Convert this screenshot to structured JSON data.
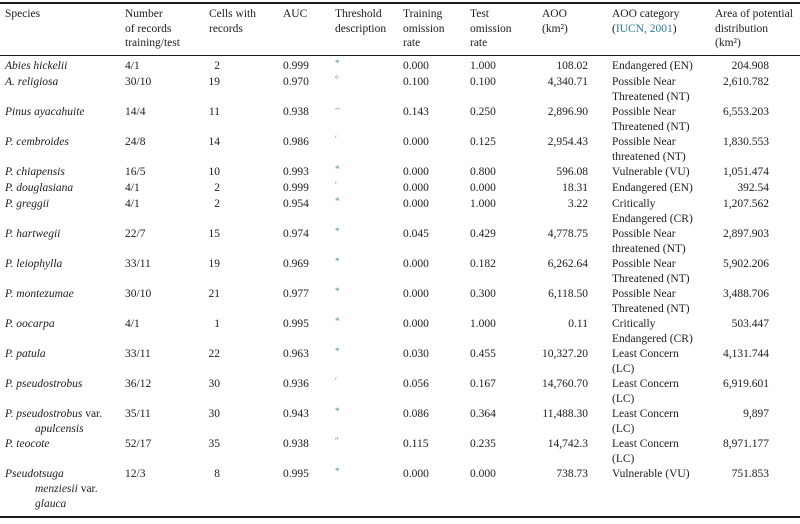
{
  "colors": {
    "text": "#1c1c1c",
    "rule": "#1a1a1a",
    "link_teal": "#2f7ba0",
    "footnote_mark_teal": "#4786a2",
    "background": "#ffffff"
  },
  "header": {
    "species": "Species",
    "records_lines": [
      "Number",
      "of records",
      "training/test"
    ],
    "cells_lines": [
      "Cells with",
      "records"
    ],
    "auc": "AUC",
    "threshold_lines": [
      "Threshold",
      "description"
    ],
    "training_lines": [
      "Training",
      "omission",
      "rate"
    ],
    "test_lines": [
      "Test",
      "omission",
      "rate"
    ],
    "aoo_lines": [
      "AOO",
      "(km²)"
    ],
    "category_line1": "AOO category",
    "category_open": "(",
    "category_link": "IUCN, 2001",
    "category_close": ")",
    "area_lines": [
      "Area of potential",
      "distribution",
      "(km²)"
    ]
  },
  "rows": [
    {
      "species": [
        [
          {
            "t": "Abies hickelii",
            "i": true
          }
        ]
      ],
      "records": "4/1",
      "cells": "2",
      "auc": "0.999",
      "threshold": "*",
      "training": "0.000",
      "test": "1.000",
      "aoo": "108.02",
      "category": [
        "Endangered (EN)"
      ],
      "area": "204.908"
    },
    {
      "species": [
        [
          {
            "t": "A. religiosa",
            "i": true
          }
        ]
      ],
      "records": "30/10",
      "cells": "19",
      "auc": "0.970",
      "threshold": "°",
      "training": "0.100",
      "test": "0.100",
      "aoo": "4,340.71",
      "category": [
        "Possible Near",
        "Threatened (NT)"
      ],
      "area": "2,610.782"
    },
    {
      "species": [
        [
          {
            "t": "Pinus ayacahuite",
            "i": true
          }
        ]
      ],
      "records": "14/4",
      "cells": "11",
      "auc": "0.938",
      "threshold": "~",
      "training": "0.143",
      "test": "0.250",
      "aoo": "2,896.90",
      "category": [
        "Possible Near",
        "Threatened (NT)"
      ],
      "area": "6,553.203"
    },
    {
      "species": [
        [
          {
            "t": "P. cembroides",
            "i": true
          }
        ]
      ],
      "records": "24/8",
      "cells": "14",
      "auc": "0.986",
      "threshold": "′",
      "training": "0.000",
      "test": "0.125",
      "aoo": "2,954.43",
      "category": [
        "Possible Near",
        "threatened (NT)"
      ],
      "area": "1,830.553"
    },
    {
      "species": [
        [
          {
            "t": "P. chiapensis",
            "i": true
          }
        ]
      ],
      "records": "16/5",
      "cells": "10",
      "auc": "0.993",
      "threshold": "*",
      "training": "0.000",
      "test": "0.800",
      "aoo": "596.08",
      "category": [
        "Vulnerable (VU)"
      ],
      "area": "1,051.474"
    },
    {
      "species": [
        [
          {
            "t": "P. douglasiana",
            "i": true
          }
        ]
      ],
      "records": "4/1",
      "cells": "2",
      "auc": "0.999",
      "threshold": "′",
      "training": "0.000",
      "test": "0.000",
      "aoo": "18.31",
      "category": [
        "Endangered (EN)"
      ],
      "area": "392.54"
    },
    {
      "species": [
        [
          {
            "t": "P. greggii",
            "i": true
          }
        ]
      ],
      "records": "4/1",
      "cells": "2",
      "auc": "0.954",
      "threshold": "*",
      "training": "0.000",
      "test": "1.000",
      "aoo": "3.22",
      "category": [
        "Critically",
        "Endangered (CR)"
      ],
      "area": "1,207.562"
    },
    {
      "species": [
        [
          {
            "t": "P. hartwegii",
            "i": true
          }
        ]
      ],
      "records": "22/7",
      "cells": "15",
      "auc": "0.974",
      "threshold": "*",
      "training": "0.045",
      "test": "0.429",
      "aoo": "4,778.75",
      "category": [
        "Possible Near",
        "threatened (NT)"
      ],
      "area": "2,897.903"
    },
    {
      "species": [
        [
          {
            "t": "P. leiophylla",
            "i": true
          }
        ]
      ],
      "records": "33/11",
      "cells": "19",
      "auc": "0.969",
      "threshold": "*",
      "training": "0.000",
      "test": "0.182",
      "aoo": "6,262.64",
      "category": [
        "Possible Near",
        "Threatened (NT)"
      ],
      "area": "5,902.206"
    },
    {
      "species": [
        [
          {
            "t": "P. montezumae",
            "i": true
          }
        ]
      ],
      "records": "30/10",
      "cells": "21",
      "auc": "0.977",
      "threshold": "*",
      "training": "0.000",
      "test": "0.300",
      "aoo": "6,118.50",
      "category": [
        "Possible Near",
        "Threatened (NT)"
      ],
      "area": "3,488.706"
    },
    {
      "species": [
        [
          {
            "t": "P. oocarpa",
            "i": true
          }
        ]
      ],
      "records": "4/1",
      "cells": "1",
      "auc": "0.995",
      "threshold": "*",
      "training": "0.000",
      "test": "1.000",
      "aoo": "0.11",
      "category": [
        "Critically",
        "Endangered (CR)"
      ],
      "area": "503.447"
    },
    {
      "species": [
        [
          {
            "t": "P. patula",
            "i": true
          }
        ]
      ],
      "records": "33/11",
      "cells": "22",
      "auc": "0.963",
      "threshold": "*",
      "training": "0.030",
      "test": "0.455",
      "aoo": "10,327.20",
      "category": [
        "Least Concern",
        "(LC)"
      ],
      "area": "4,131.744"
    },
    {
      "species": [
        [
          {
            "t": "P. pseudostrobus",
            "i": true
          }
        ]
      ],
      "records": "36/12",
      "cells": "30",
      "auc": "0.936",
      "threshold": "′",
      "training": "0.056",
      "test": "0.167",
      "aoo": "14,760.70",
      "category": [
        "Least Concern",
        "(LC)"
      ],
      "area": "6,919.601"
    },
    {
      "species": [
        [
          {
            "t": "P. pseudostrobus ",
            "i": true
          },
          {
            "t": "var.",
            "i": false
          }
        ],
        [
          {
            "t": "apulcensis",
            "i": true
          }
        ]
      ],
      "records": "35/11",
      "cells": "30",
      "auc": "0.943",
      "threshold": "*",
      "training": "0.086",
      "test": "0.364",
      "aoo": "11,488.30",
      "category": [
        "Least Concern",
        "(LC)"
      ],
      "area": "9,897"
    },
    {
      "species": [
        [
          {
            "t": "P. teocote",
            "i": true
          }
        ]
      ],
      "records": "52/17",
      "cells": "35",
      "auc": "0.938",
      "threshold": "″",
      "training": "0.115",
      "test": "0.235",
      "aoo": "14,742.3",
      "category": [
        "Least Concern",
        "(LC)"
      ],
      "area": "8,971.177"
    },
    {
      "species": [
        [
          {
            "t": "Pseudotsuga",
            "i": true
          }
        ],
        [
          {
            "t": "menziesii ",
            "i": true
          },
          {
            "t": "var.",
            "i": false
          }
        ],
        [
          {
            "t": "glauca",
            "i": true
          }
        ]
      ],
      "records": "12/3",
      "cells": "8",
      "auc": "0.995",
      "threshold": "*",
      "training": "0.000",
      "test": "0.000",
      "aoo": "738.73",
      "category": [
        "Vulnerable (VU)"
      ],
      "area": "751.853"
    }
  ]
}
